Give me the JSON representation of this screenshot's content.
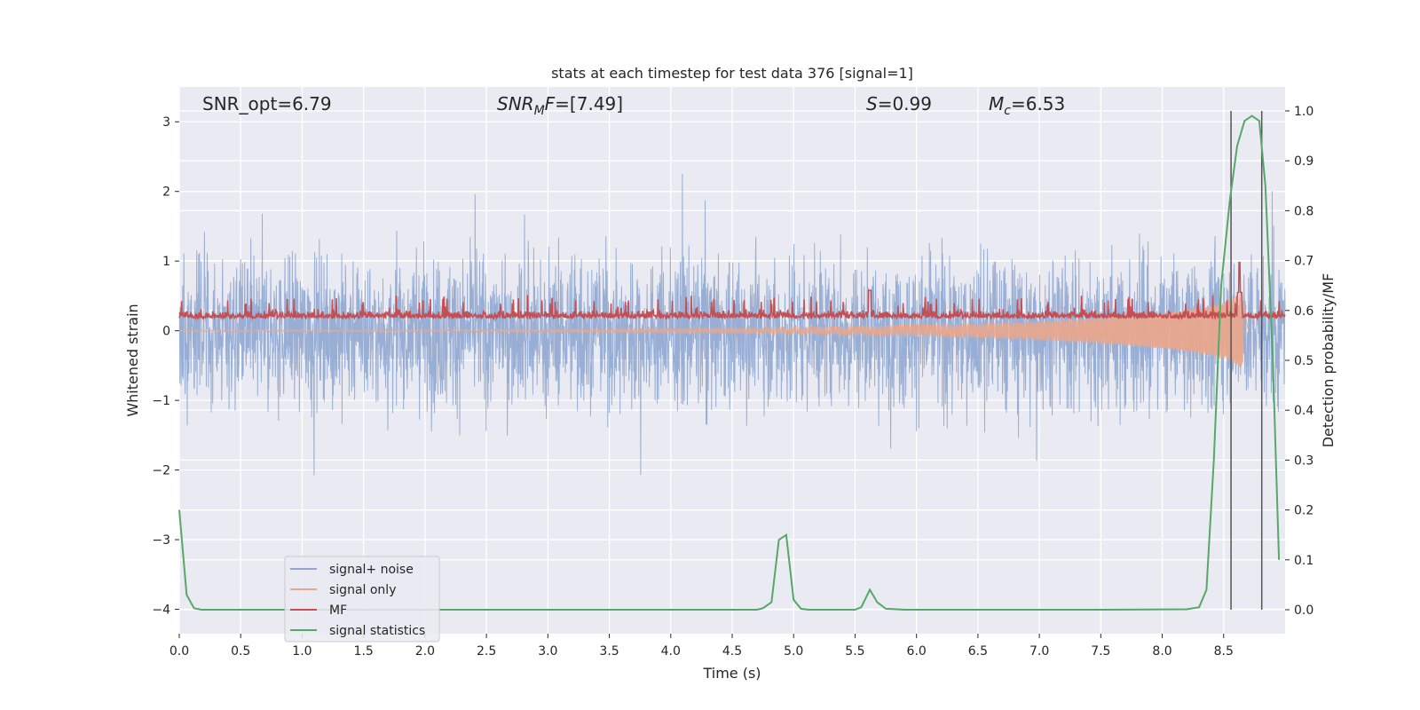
{
  "chart_data": {
    "type": "line",
    "title": "stats at each timestep for test data 376 [signal=1]",
    "xlabel": "Time (s)",
    "ylabel_left": "Whitened strain",
    "ylabel_right": "Detection probability/MF",
    "xlim": [
      0.0,
      9.0
    ],
    "ylim_left": [
      -4.35,
      3.5
    ],
    "ylim_right": [
      -0.048,
      1.048
    ],
    "x_ticks": [
      0.0,
      0.5,
      1.0,
      1.5,
      2.0,
      2.5,
      3.0,
      3.5,
      4.0,
      4.5,
      5.0,
      5.5,
      6.0,
      6.5,
      7.0,
      7.5,
      8.0,
      8.5
    ],
    "x_tick_labels": [
      "0.0",
      "0.5",
      "1.0",
      "1.5",
      "2.0",
      "2.5",
      "3.0",
      "3.5",
      "4.0",
      "4.5",
      "5.0",
      "5.5",
      "6.0",
      "6.5",
      "7.0",
      "7.5",
      "8.0",
      "8.5"
    ],
    "y_left_ticks": [
      3,
      2,
      1,
      0,
      -1,
      -2,
      -3,
      -4
    ],
    "y_left_tick_labels": [
      "3",
      "2",
      "1",
      "0",
      "−1",
      "−2",
      "−3",
      "−4"
    ],
    "y_right_ticks": [
      1.0,
      0.9,
      0.8,
      0.7,
      0.6,
      0.5,
      0.4,
      0.3,
      0.2,
      0.1,
      0.0
    ],
    "y_right_tick_labels": [
      "1.0",
      "0.9",
      "0.8",
      "0.7",
      "0.6",
      "0.5",
      "0.4",
      "0.3",
      "0.2",
      "0.1",
      "0.0"
    ],
    "grid": true,
    "legend_position": "lower left",
    "annotations": [
      {
        "id": "snr-opt",
        "text": "SNR_opt=6.79"
      },
      {
        "id": "snr-mf",
        "text": "SNR_MF=[7.49]"
      },
      {
        "id": "s-stat",
        "text": "S=0.99"
      },
      {
        "id": "mc",
        "text": "M_c=6.53"
      }
    ],
    "vertical_lines_x": [
      8.56,
      8.81
    ],
    "series": [
      {
        "name": "signal+ noise",
        "color": "#8fa7d0",
        "axis": "left",
        "description": "noise-dominated whitened strain, amplitude roughly ±1.5 with spikes to ±3"
      },
      {
        "name": "signal only",
        "color": "#e8a88e",
        "axis": "left",
        "description": "chirp growing toward merger near t=8.6 s",
        "x": [
          0.0,
          1.0,
          2.0,
          3.0,
          4.0,
          5.0,
          5.5,
          6.0,
          6.5,
          7.0,
          7.5,
          8.0,
          8.3,
          8.5,
          8.6,
          8.65,
          8.7
        ],
        "envelope": [
          0.01,
          0.012,
          0.015,
          0.02,
          0.03,
          0.045,
          0.06,
          0.08,
          0.1,
          0.13,
          0.18,
          0.25,
          0.32,
          0.4,
          0.5,
          0.55,
          0.0
        ]
      },
      {
        "name": "MF",
        "color": "#c44e52",
        "axis": "left",
        "description": "matched-filter output hovering around 0.2, peak near t=8.63 s reaching about 1.0"
      },
      {
        "name": "signal statistics",
        "color": "#55a868",
        "axis": "right",
        "x": [
          0.0,
          0.06,
          0.12,
          0.18,
          0.3,
          1.0,
          2.0,
          3.0,
          4.0,
          4.7,
          4.75,
          4.82,
          4.88,
          4.94,
          5.0,
          5.06,
          5.12,
          5.5,
          5.55,
          5.62,
          5.68,
          5.75,
          5.9,
          6.5,
          7.5,
          8.2,
          8.3,
          8.36,
          8.42,
          8.48,
          8.55,
          8.61,
          8.67,
          8.73,
          8.79,
          8.84,
          8.9,
          8.95
        ],
        "y": [
          0.2,
          0.03,
          0.003,
          0.0,
          0.0,
          0.0,
          0.0,
          0.0,
          0.0,
          0.0,
          0.003,
          0.015,
          0.14,
          0.15,
          0.02,
          0.002,
          0.0,
          0.0,
          0.005,
          0.04,
          0.015,
          0.002,
          0.0,
          0.0,
          0.0,
          0.001,
          0.005,
          0.04,
          0.3,
          0.65,
          0.82,
          0.93,
          0.98,
          0.99,
          0.98,
          0.85,
          0.5,
          0.1
        ]
      }
    ]
  }
}
